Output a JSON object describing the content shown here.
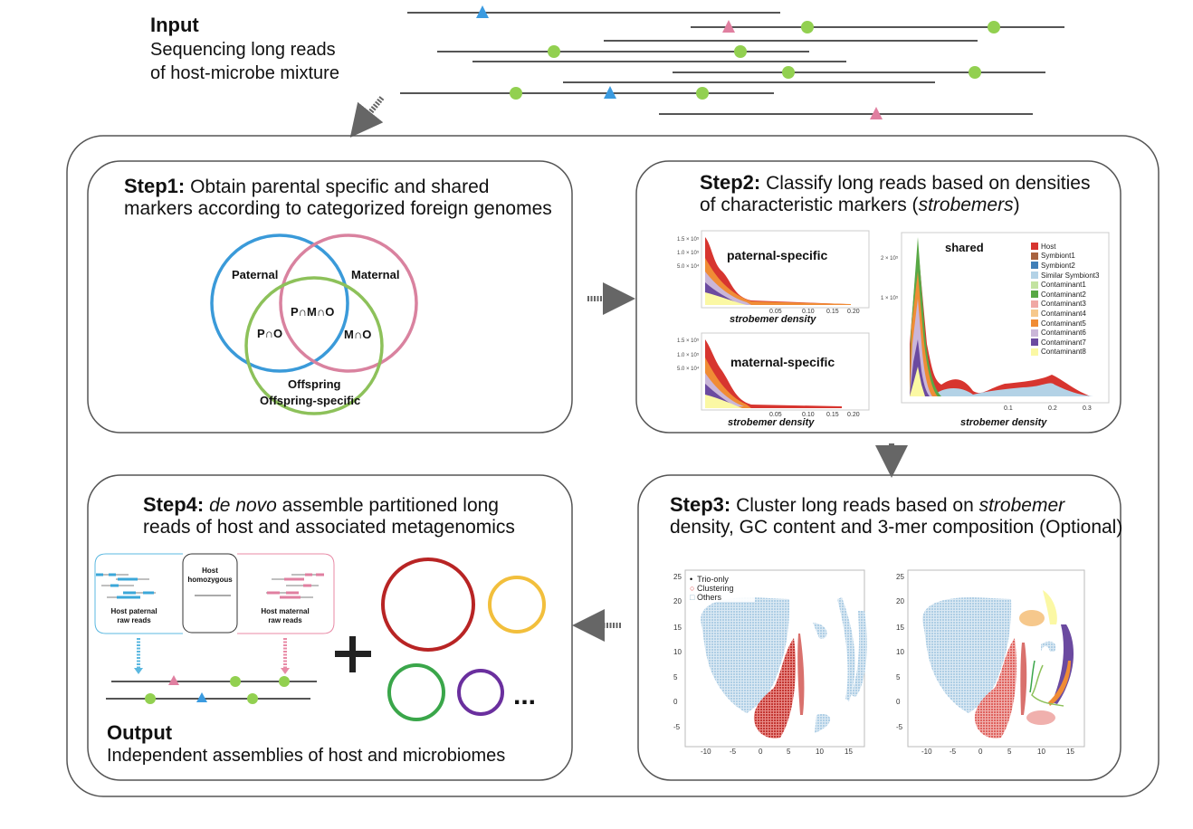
{
  "input": {
    "title": "Input",
    "line1": "Sequencing long reads",
    "line2": "of host-microbe mixture"
  },
  "step1": {
    "title": "Step1:",
    "text1": " Obtain parental specific and shared",
    "text2": "markers according to categorized foreign genomes",
    "venn": {
      "paternal": "Paternal",
      "maternal": "Maternal",
      "pmo": "P∩M∩O",
      "po": "P∩O",
      "mo": "M∩O",
      "offspring": "Offspring",
      "offspring_specific": "Offspring-specific"
    },
    "colors": {
      "paternal": "#3a9ad9",
      "maternal": "#d9829f",
      "offspring": "#8dc15a"
    }
  },
  "step2": {
    "title": "Step2:",
    "text1": " Classify long reads based on densities",
    "text2a": "of characteristic markers (",
    "text2b": "strobemers",
    "text2c": ")",
    "plots": {
      "paternal": {
        "title": "paternal-specific",
        "yticks": [
          "1.5 × 10⁵",
          "1.0 × 10⁵",
          "5.0 × 10⁴"
        ],
        "xticks": [
          "0.05",
          "0.10",
          "0.15",
          "0.20"
        ],
        "xlabel": "strobemer density"
      },
      "maternal": {
        "title": "maternal-specific",
        "yticks": [
          "1.5 × 10⁵",
          "1.0 × 10⁵",
          "5.0 × 10⁴"
        ],
        "xticks": [
          "0.05",
          "0.10",
          "0.15",
          "0.20"
        ],
        "xlabel": "strobemer density"
      },
      "shared": {
        "title": "shared",
        "yticks": [
          "2 × 10⁵",
          "1 × 10⁵"
        ],
        "xticks": [
          "0.1",
          "0.2",
          "0.3"
        ],
        "xlabel": "strobemer density"
      }
    },
    "legend": [
      {
        "label": "Host",
        "color": "#d7352f"
      },
      {
        "label": "Symbiont1",
        "color": "#a8623f"
      },
      {
        "label": "Symbiont2",
        "color": "#3f7fb8"
      },
      {
        "label": "Similar Symbiont3",
        "color": "#b3d2e6"
      },
      {
        "label": "Contaminant1",
        "color": "#c3e3a0"
      },
      {
        "label": "Contaminant2",
        "color": "#58a845"
      },
      {
        "label": "Contaminant3",
        "color": "#f0a8a4"
      },
      {
        "label": "Contaminant4",
        "color": "#f6c88c"
      },
      {
        "label": "Contaminant5",
        "color": "#f08c35"
      },
      {
        "label": "Contaminant6",
        "color": "#cab6d8"
      },
      {
        "label": "Contaminant7",
        "color": "#6b4aa0"
      },
      {
        "label": "Contaminant8",
        "color": "#fbf8a4"
      }
    ]
  },
  "step3": {
    "title": "Step3:",
    "text1a": " Cluster long reads based on ",
    "text1b": "strobemer",
    "text2": "density, GC content and 3-mer composition (Optional)",
    "legend": [
      "Trio-only",
      "Clustering",
      "Others"
    ],
    "yticks": [
      "25",
      "20",
      "15",
      "10",
      "5",
      "0",
      "-5"
    ],
    "xticks": [
      "-10",
      "-5",
      "0",
      "5",
      "10",
      "15"
    ]
  },
  "step4": {
    "title": "Step4:",
    "text1a": " ",
    "text1b": "de novo",
    "text1c": " assemble partitioned long",
    "text2": "reads of host and associated metagenomics",
    "host_paternal": "Host paternal raw reads",
    "host_homozygous": "Host homozygous",
    "host_maternal": "Host maternal raw reads",
    "ellipsis": "...",
    "genome_colors": [
      "#b82424",
      "#f2bf3c",
      "#3aa64a",
      "#6a2f9e"
    ]
  },
  "output": {
    "title": "Output",
    "text": "Independent assemblies of host and microbiomes"
  }
}
